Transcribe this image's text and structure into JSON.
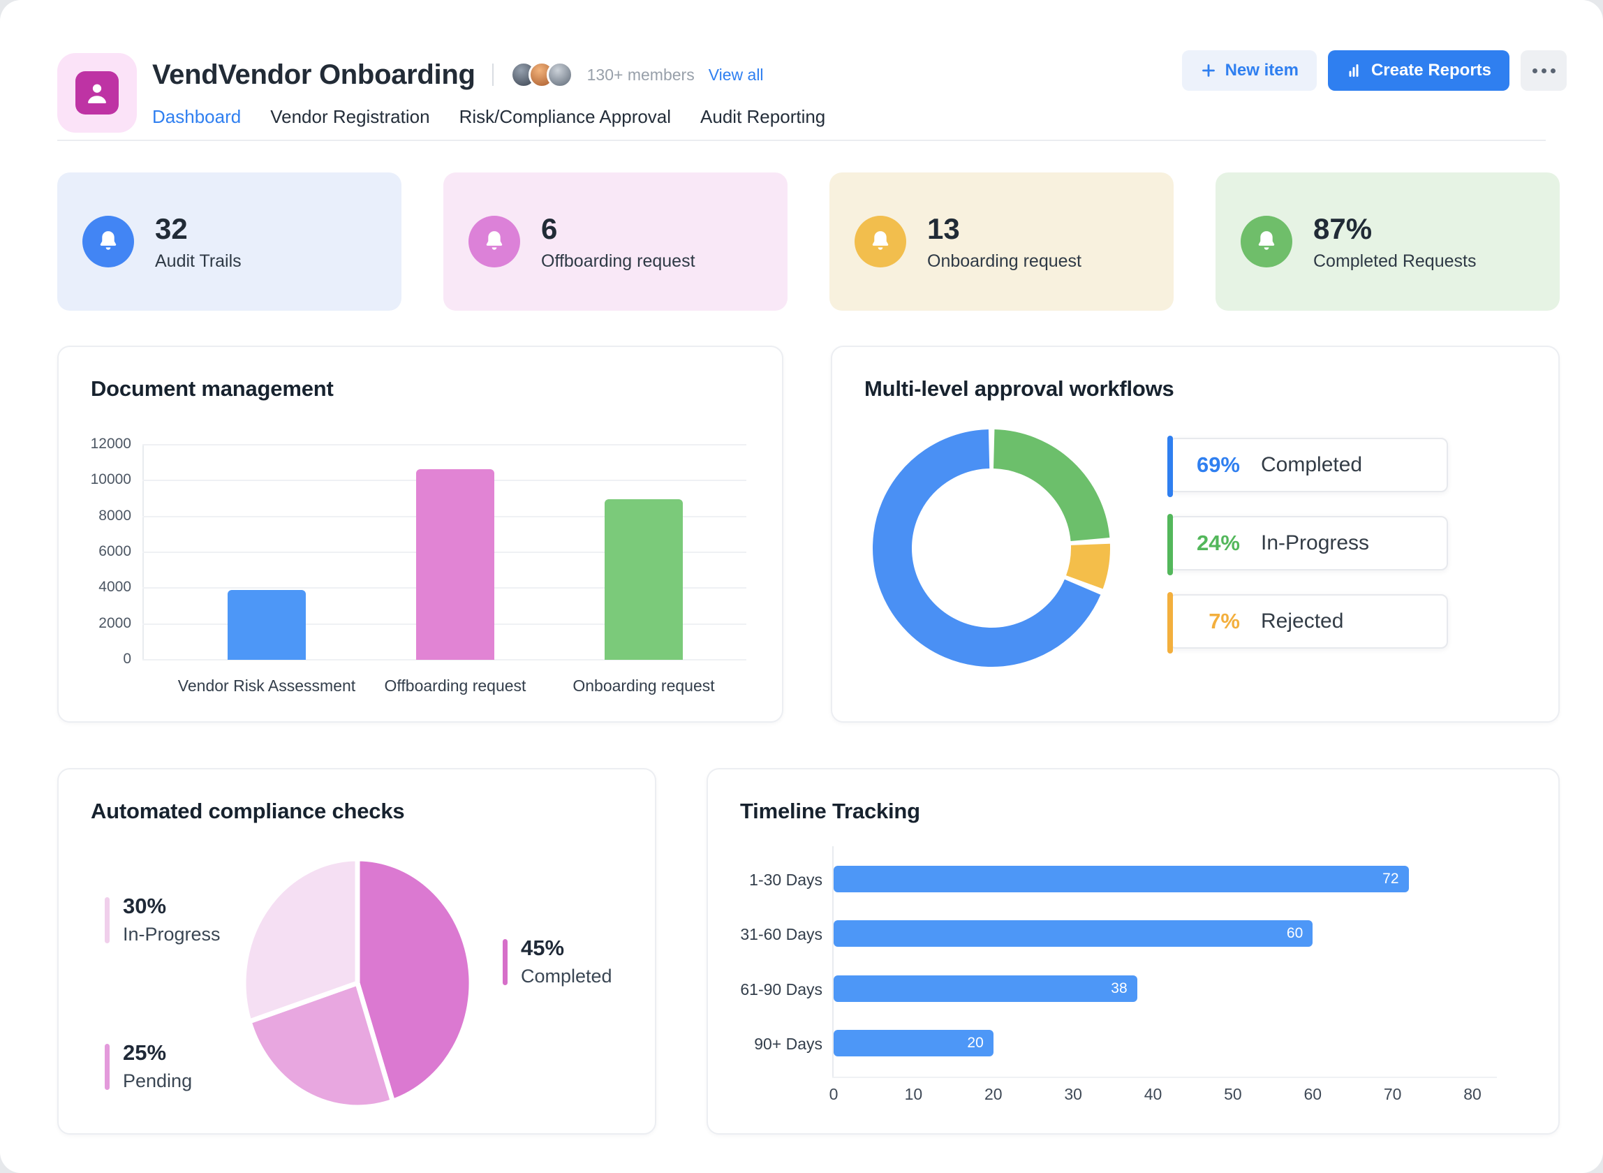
{
  "header": {
    "title": "VendVendor Onboarding",
    "members_text": "130+ members",
    "view_all_label": "View all",
    "nav": [
      {
        "label": "Dashboard",
        "active": true
      },
      {
        "label": "Vendor Registration",
        "active": false
      },
      {
        "label": "Risk/Compliance Approval",
        "active": false
      },
      {
        "label": "Audit Reporting",
        "active": false
      }
    ],
    "new_item_label": "New item",
    "create_reports_label": "Create Reports",
    "accent_color": "#2F7FF0",
    "logo_colors": {
      "outer": "#FBE3F8",
      "inner": "#BE33A4"
    }
  },
  "stat_cards": [
    {
      "value": "32",
      "label": "Audit Trails",
      "bg": "#E9EFFB",
      "icon": "bell-icon",
      "icon_bg": "#4285F4"
    },
    {
      "value": "6",
      "label": "Offboarding request",
      "bg": "#F9E8F7",
      "icon": "bell-icon",
      "icon_bg": "#DC81D8"
    },
    {
      "value": "13",
      "label": "Onboarding request",
      "bg": "#F8F1DE",
      "icon": "bell-icon",
      "icon_bg": "#F2BE4D"
    },
    {
      "value": "87%",
      "label": "Completed Requests",
      "bg": "#E6F3E4",
      "icon": "bell-icon",
      "icon_bg": "#6FBE6A"
    }
  ],
  "chart_data": [
    {
      "type": "bar",
      "title": "Document management",
      "categories": [
        "Vendor Risk Assessment",
        "Offboarding request",
        "Onboarding request"
      ],
      "values": [
        3900,
        10650,
        8950
      ],
      "colors": [
        "#4D97F7",
        "#E184D4",
        "#7BCA7A"
      ],
      "xlabel": "",
      "ylabel": "",
      "yticks": [
        0,
        2000,
        4000,
        6000,
        8000,
        10000,
        12000
      ],
      "ylim": [
        0,
        12000
      ],
      "grid": true,
      "legend_position": "none"
    },
    {
      "type": "donut",
      "title": "Multi-level approval workflows",
      "segments_clockwise_from_top": [
        {
          "label": "In-Progress",
          "value": 24,
          "color": "#6CBF6B"
        },
        {
          "label": "Rejected",
          "value": 7,
          "color": "#F4BE4A"
        },
        {
          "label": "Completed",
          "value": 69,
          "color": "#4A90F4"
        }
      ],
      "legend": [
        {
          "pct": "69%",
          "label": "Completed",
          "color": "#2F7FF0"
        },
        {
          "pct": "24%",
          "label": "In-Progress",
          "color": "#53B75B"
        },
        {
          "pct": "7%",
          "label": "Rejected",
          "color": "#F3AF3D"
        }
      ],
      "legend_position": "right"
    },
    {
      "type": "pie",
      "title": "Automated compliance checks",
      "slices_clockwise_from_top": [
        {
          "label": "Completed",
          "value": 45,
          "color": "#DB79D1"
        },
        {
          "label": "Pending",
          "value": 25,
          "color": "#E8A7E0"
        },
        {
          "label": "In-Progress",
          "value": 30,
          "color": "#F5DFF3"
        }
      ],
      "legend": [
        {
          "pct": "30%",
          "label": "In-Progress",
          "color": "#F0CFEB",
          "position": "top-left"
        },
        {
          "pct": "25%",
          "label": "Pending",
          "color": "#E39ADB",
          "position": "bottom-left"
        },
        {
          "pct": "45%",
          "label": "Completed",
          "color": "#D66FC9",
          "position": "right"
        }
      ]
    },
    {
      "type": "bar_horizontal",
      "title": "Timeline Tracking",
      "categories": [
        "1-30 Days",
        "31-60 Days",
        "61-90 Days",
        "90+ Days"
      ],
      "values": [
        72,
        60,
        38,
        20
      ],
      "bar_color": "#4D97F7",
      "value_label_color": "#FFFFFF",
      "xticks": [
        0,
        10,
        20,
        30,
        40,
        50,
        60,
        70,
        80
      ],
      "xlim": [
        0,
        80
      ],
      "grid": false
    }
  ]
}
